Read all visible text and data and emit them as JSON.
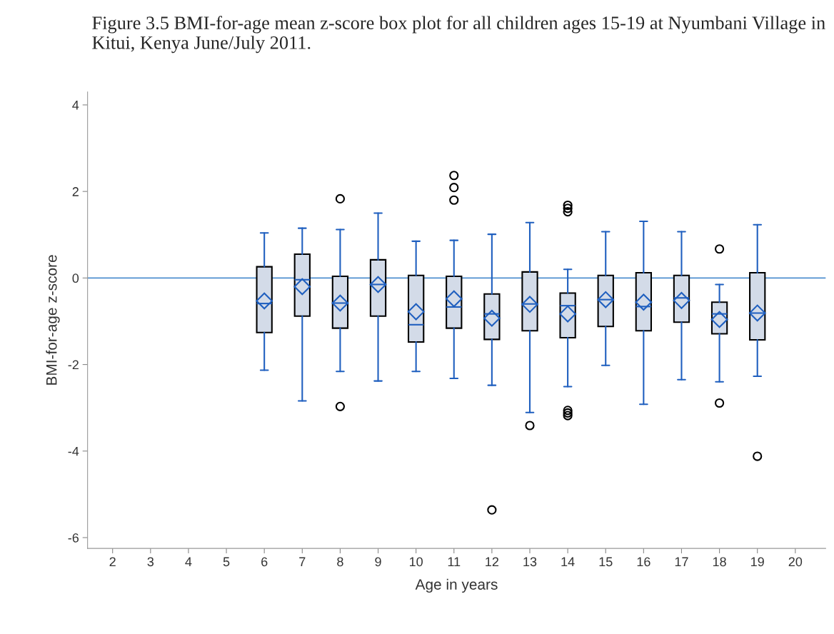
{
  "chart_data": {
    "type": "box",
    "title": "Figure 3.5 BMI-for-age mean z-score box plot for all children ages 15-19 at Nyumbani Village in Kitui, Kenya June/July 2011.",
    "xlabel": "Age in years",
    "ylabel": "BMI-for-age z-score",
    "x": [
      6,
      7,
      8,
      9,
      10,
      11,
      12,
      13,
      14,
      15,
      16,
      17,
      18,
      19
    ],
    "color": "#d3dbe8",
    "boxes": [
      {
        "low": -2.13,
        "q1": -1.26,
        "median": -0.59,
        "q3": 0.26,
        "high": 1.04,
        "mean": -0.53
      },
      {
        "low": -2.84,
        "q1": -0.88,
        "median": -0.04,
        "q3": 0.55,
        "high": 1.15,
        "mean": -0.2
      },
      {
        "low": -2.16,
        "q1": -1.16,
        "median": -0.58,
        "q3": 0.04,
        "high": 1.12,
        "mean": -0.58,
        "outliers": [
          1.83,
          -2.97
        ]
      },
      {
        "low": -2.38,
        "q1": -0.88,
        "median": -0.15,
        "q3": 0.42,
        "high": 1.5,
        "mean": -0.15
      },
      {
        "low": -2.16,
        "q1": -1.48,
        "median": -1.08,
        "q3": 0.06,
        "high": 0.85,
        "mean": -0.78
      },
      {
        "low": -2.32,
        "q1": -1.16,
        "median": -0.67,
        "q3": 0.04,
        "high": 0.87,
        "mean": -0.48,
        "outliers": [
          2.37,
          2.09,
          1.8
        ]
      },
      {
        "low": -2.48,
        "q1": -1.42,
        "median": -0.83,
        "q3": -0.37,
        "high": 1.01,
        "mean": -0.93,
        "outliers": [
          -5.36
        ]
      },
      {
        "low": -3.11,
        "q1": -1.22,
        "median": -0.6,
        "q3": 0.14,
        "high": 1.28,
        "mean": -0.61,
        "outliers": [
          -3.41
        ]
      },
      {
        "low": -2.51,
        "q1": -1.38,
        "median": -0.64,
        "q3": -0.35,
        "high": 0.2,
        "mean": -0.83,
        "outliers": [
          1.68,
          1.61,
          1.53,
          -3.06,
          -3.12,
          -3.18
        ]
      },
      {
        "low": -2.02,
        "q1": -1.12,
        "median": -0.5,
        "q3": 0.06,
        "high": 1.07,
        "mean": -0.5
      },
      {
        "low": -2.92,
        "q1": -1.22,
        "median": -0.66,
        "q3": 0.12,
        "high": 1.31,
        "mean": -0.56
      },
      {
        "low": -2.35,
        "q1": -1.02,
        "median": -0.46,
        "q3": 0.06,
        "high": 1.07,
        "mean": -0.52
      },
      {
        "low": -2.4,
        "q1": -1.29,
        "median": -0.83,
        "q3": -0.56,
        "high": -0.15,
        "mean": -0.96,
        "outliers": [
          0.67,
          -2.89
        ]
      },
      {
        "low": -2.27,
        "q1": -1.43,
        "median": -0.81,
        "q3": 0.12,
        "high": 1.23,
        "mean": -0.81,
        "outliers": [
          -4.12
        ]
      }
    ],
    "ref_lines": [
      {
        "axis": "y",
        "value": 0,
        "color": "#4f8fd0"
      }
    ],
    "xlim": [
      1.34,
      20.8
    ],
    "xticks": [
      2,
      3,
      4,
      5,
      6,
      7,
      8,
      9,
      10,
      11,
      12,
      13,
      14,
      15,
      16,
      17,
      18,
      19,
      20
    ],
    "ylim": [
      -6.25,
      4.3
    ],
    "yticks": [
      -6,
      -4,
      -2,
      0,
      2,
      4
    ],
    "grid": false,
    "legend": false
  }
}
